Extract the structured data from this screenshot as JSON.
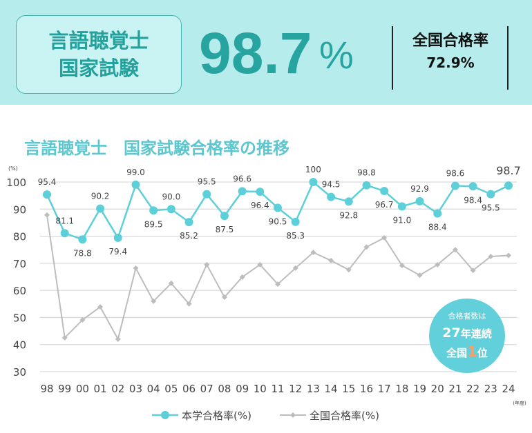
{
  "header": {
    "exam_line1": "言語聴覚士",
    "exam_line2": "国家試験",
    "pass_rate": "98.7",
    "pass_rate_unit": "%",
    "national_label": "全国合格率",
    "national_value": "72.9%"
  },
  "chart_title": "言語聴覚士　国家試験合格率の推移",
  "badge": {
    "line1": "合格者数は",
    "years": "27",
    "line2_suffix": "年連続",
    "line3_prefix": "全国",
    "rank": "1",
    "line3_suffix": "位"
  },
  "colors": {
    "school": "#5ccfd9",
    "national": "#bdbdbd",
    "accent": "#27a49f"
  },
  "chart_data": {
    "type": "line",
    "ylabel": "(%)",
    "xlabel": "(年度)",
    "ylim": [
      30,
      100
    ],
    "yticks": [
      100,
      90,
      80,
      70,
      60,
      50,
      40,
      30
    ],
    "grid": true,
    "legend": "bottom",
    "categories": [
      "98",
      "99",
      "00",
      "01",
      "02",
      "03",
      "04",
      "05",
      "06",
      "07",
      "08",
      "09",
      "10",
      "11",
      "12",
      "13",
      "14",
      "15",
      "16",
      "17",
      "18",
      "19",
      "20",
      "21",
      "22",
      "23",
      "24"
    ],
    "series": [
      {
        "name": "本学合格率(%)",
        "marker": "circle",
        "labels": [
          "95.4",
          "81.1",
          "78.8",
          "90.2",
          "79.4",
          "99.0",
          "89.5",
          "90.0",
          "85.2",
          "95.5",
          "87.5",
          "96.6",
          "96.4",
          "90.5",
          "85.3",
          "100",
          "94.5",
          "92.8",
          "98.8",
          "96.7",
          "91.0",
          "92.9",
          "88.4",
          "98.6",
          "98.4",
          "95.5",
          "98.7"
        ],
        "values": [
          95.4,
          81.1,
          78.8,
          90.2,
          79.4,
          99.0,
          89.5,
          90.0,
          85.2,
          95.5,
          87.5,
          96.6,
          96.4,
          90.5,
          85.3,
          100,
          94.5,
          92.8,
          98.8,
          96.7,
          91.0,
          92.9,
          88.4,
          98.6,
          98.4,
          95.5,
          98.7
        ]
      },
      {
        "name": "全国合格率(%)",
        "marker": "diamond",
        "values": [
          87.8,
          42.5,
          49.1,
          53.9,
          42.0,
          68.2,
          56.0,
          62.6,
          55.0,
          69.5,
          57.5,
          64.9,
          69.5,
          62.3,
          68.2,
          74.0,
          71.0,
          67.6,
          76.0,
          79.4,
          69.2,
          65.6,
          69.5,
          75.0,
          67.4,
          72.5,
          72.9
        ]
      }
    ]
  }
}
